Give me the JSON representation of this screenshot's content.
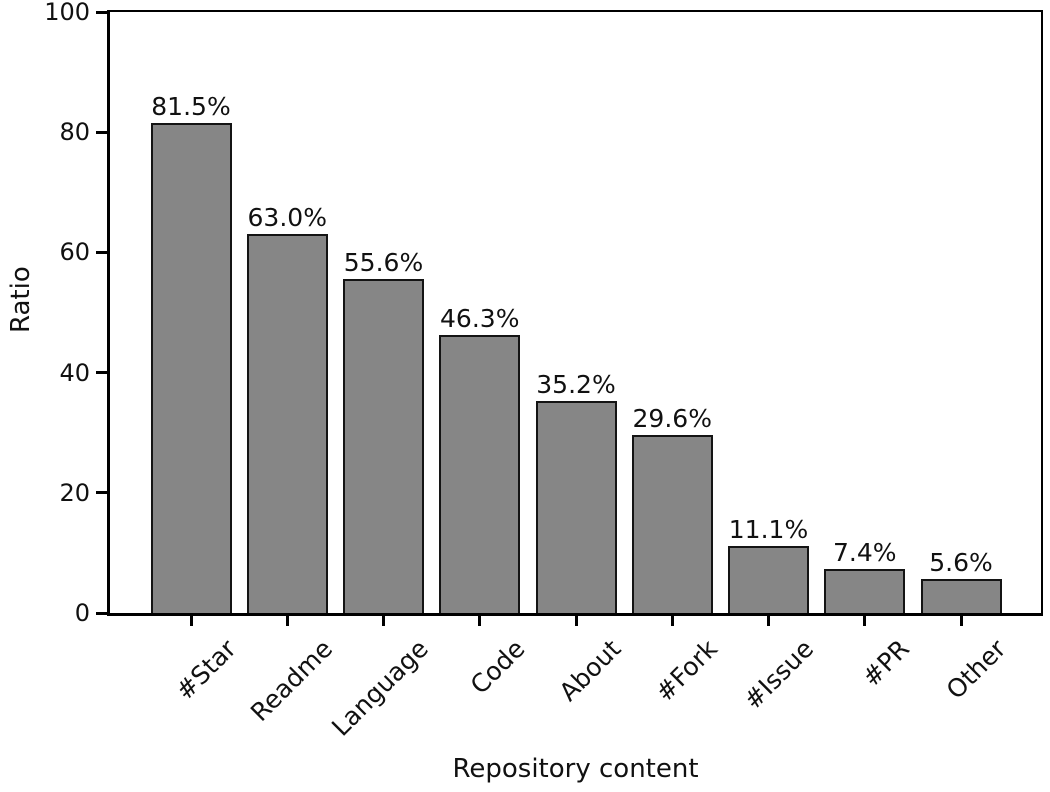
{
  "chart_data": {
    "type": "bar",
    "title": "",
    "xlabel": "Repository content",
    "ylabel": "Ratio",
    "categories": [
      "#Star",
      "Readme",
      "Language",
      "Code",
      "About",
      "#Fork",
      "#Issue",
      "#PR",
      "Other"
    ],
    "values": [
      81.5,
      63.0,
      55.6,
      46.3,
      35.2,
      29.6,
      11.1,
      7.4,
      5.6
    ],
    "value_labels": [
      "81.5%",
      "63.0%",
      "55.6%",
      "46.3%",
      "35.2%",
      "29.6%",
      "11.1%",
      "7.4%",
      "5.6%"
    ],
    "ylim": [
      0,
      100
    ],
    "yticks": [
      0,
      20,
      40,
      60,
      80,
      100
    ],
    "grid": false,
    "legend": "none",
    "bar_color": "#868686",
    "bar_edge_color": "#141414",
    "axis_color": "#000000",
    "text_color": "#111111",
    "background_color": "#ffffff"
  }
}
